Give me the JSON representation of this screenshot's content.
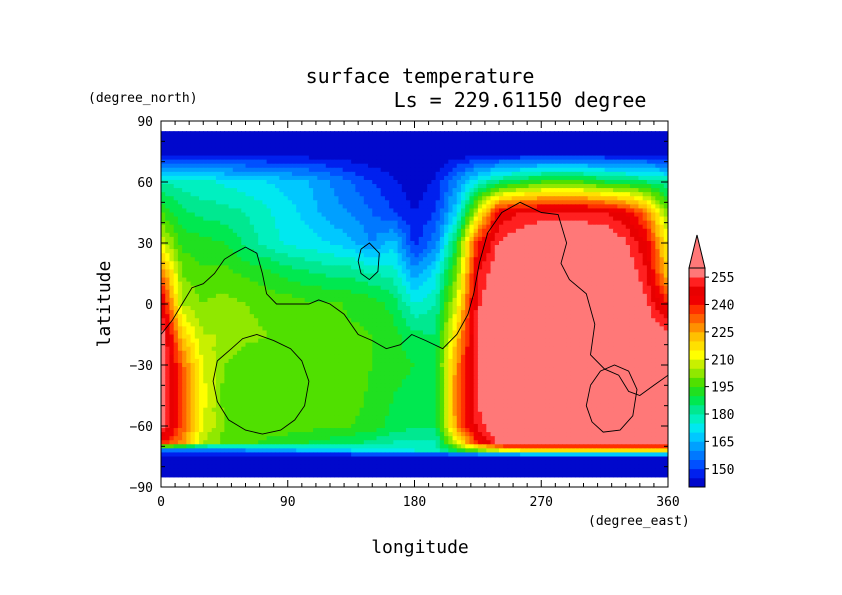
{
  "chart_data": {
    "type": "heatmap",
    "title": "surface temperature",
    "subtitle": "Ls = 229.61150 degree",
    "xlabel": "longitude",
    "ylabel": "latitude",
    "x_unit": "(degree_east)",
    "y_unit": "(degree_north)",
    "xlim": [
      0,
      360
    ],
    "ylim": [
      -90,
      90
    ],
    "x_ticks": [
      0,
      90,
      180,
      270,
      360
    ],
    "y_ticks": [
      90,
      60,
      30,
      0,
      -30,
      -60,
      -90
    ],
    "data_lat_range": [
      -85,
      85
    ],
    "colorbar": {
      "levels": [
        150,
        165,
        180,
        195,
        210,
        225,
        240,
        255
      ],
      "bands": [
        {
          "upper": 145,
          "color": "#0008cc"
        },
        {
          "upper": 150,
          "color": "#0020ee"
        },
        {
          "upper": 155,
          "color": "#0050ff"
        },
        {
          "upper": 160,
          "color": "#0078ff"
        },
        {
          "upper": 165,
          "color": "#00a0ff"
        },
        {
          "upper": 170,
          "color": "#00c8ff"
        },
        {
          "upper": 175,
          "color": "#00e8f0"
        },
        {
          "upper": 180,
          "color": "#00f0c0"
        },
        {
          "upper": 185,
          "color": "#00e890"
        },
        {
          "upper": 190,
          "color": "#00e850"
        },
        {
          "upper": 195,
          "color": "#20e020"
        },
        {
          "upper": 200,
          "color": "#50e000"
        },
        {
          "upper": 205,
          "color": "#90e800"
        },
        {
          "upper": 210,
          "color": "#c8f000"
        },
        {
          "upper": 215,
          "color": "#ffff00"
        },
        {
          "upper": 220,
          "color": "#ffe000"
        },
        {
          "upper": 225,
          "color": "#ffc000"
        },
        {
          "upper": 230,
          "color": "#ff9000"
        },
        {
          "upper": 235,
          "color": "#ff6000"
        },
        {
          "upper": 240,
          "color": "#ff3000"
        },
        {
          "upper": 245,
          "color": "#f00000"
        },
        {
          "upper": 250,
          "color": "#e80000"
        },
        {
          "upper": 255,
          "color": "#ff2020"
        },
        {
          "upper": 999,
          "color": "#ff7878"
        }
      ]
    },
    "field": {
      "lon": [
        0,
        15,
        30,
        45,
        60,
        75,
        90,
        105,
        120,
        135,
        150,
        165,
        180,
        195,
        210,
        225,
        240,
        255,
        270,
        285,
        300,
        315,
        330,
        345,
        360
      ],
      "lat": [
        85,
        75,
        60,
        45,
        30,
        15,
        0,
        -15,
        -30,
        -45,
        -60,
        -68,
        -72,
        -75,
        -85
      ],
      "values": [
        [
          140,
          140,
          140,
          140,
          140,
          140,
          140,
          140,
          140,
          140,
          140,
          140,
          140,
          140,
          140,
          140,
          140,
          140,
          140,
          140,
          140,
          140,
          140,
          140,
          140
        ],
        [
          140,
          140,
          140,
          140,
          140,
          140,
          140,
          140,
          140,
          140,
          140,
          140,
          140,
          140,
          140,
          140,
          140,
          140,
          140,
          140,
          140,
          140,
          140,
          140,
          140
        ],
        [
          180,
          178,
          176,
          174,
          172,
          170,
          168,
          165,
          160,
          155,
          150,
          146,
          142,
          146,
          160,
          175,
          185,
          190,
          195,
          195,
          195,
          190,
          188,
          185,
          180
        ],
        [
          195,
          186,
          183,
          182,
          180,
          176,
          172,
          168,
          162,
          160,
          155,
          150,
          145,
          150,
          170,
          210,
          245,
          250,
          252,
          252,
          252,
          250,
          245,
          230,
          200
        ],
        [
          210,
          193,
          192,
          190,
          184,
          178,
          174,
          172,
          170,
          166,
          160,
          168,
          148,
          158,
          190,
          240,
          256,
          260,
          262,
          262,
          262,
          262,
          256,
          245,
          212
        ],
        [
          232,
          200,
          196,
          197,
          194,
          192,
          188,
          186,
          184,
          184,
          180,
          178,
          162,
          172,
          200,
          250,
          260,
          262,
          262,
          262,
          262,
          262,
          262,
          250,
          220
        ],
        [
          250,
          205,
          200,
          202,
          200,
          198,
          198,
          196,
          196,
          194,
          193,
          188,
          175,
          180,
          210,
          254,
          262,
          262,
          262,
          262,
          262,
          262,
          262,
          256,
          240
        ],
        [
          260,
          220,
          205,
          205,
          202,
          200,
          198,
          198,
          197,
          196,
          195,
          192,
          186,
          185,
          220,
          256,
          262,
          262,
          262,
          262,
          262,
          262,
          262,
          260,
          258
        ],
        [
          262,
          232,
          210,
          200,
          196,
          198,
          198,
          198,
          197,
          197,
          195,
          192,
          190,
          188,
          228,
          257,
          262,
          262,
          262,
          262,
          262,
          262,
          262,
          262,
          262
        ],
        [
          262,
          236,
          212,
          198,
          195,
          197,
          198,
          198,
          197,
          197,
          194,
          190,
          188,
          186,
          232,
          257,
          262,
          262,
          262,
          262,
          262,
          262,
          262,
          262,
          262
        ],
        [
          260,
          234,
          210,
          200,
          198,
          198,
          198,
          197,
          196,
          195,
          193,
          188,
          186,
          186,
          228,
          252,
          262,
          262,
          262,
          262,
          262,
          262,
          262,
          262,
          262
        ],
        [
          240,
          228,
          205,
          198,
          196,
          194,
          192,
          190,
          188,
          186,
          184,
          180,
          178,
          180,
          210,
          240,
          258,
          262,
          262,
          262,
          262,
          262,
          262,
          262,
          262
        ],
        [
          158,
          156,
          156,
          158,
          160,
          162,
          164,
          166,
          168,
          170,
          172,
          174,
          175,
          178,
          190,
          200,
          210,
          215,
          215,
          215,
          215,
          215,
          215,
          215,
          215
        ],
        [
          140,
          140,
          140,
          140,
          140,
          140,
          140,
          140,
          140,
          140,
          140,
          140,
          140,
          140,
          140,
          140,
          140,
          140,
          140,
          140,
          140,
          140,
          140,
          140,
          140
        ],
        [
          140,
          140,
          140,
          140,
          140,
          140,
          140,
          140,
          140,
          140,
          140,
          140,
          140,
          140,
          140,
          140,
          140,
          140,
          140,
          140,
          140,
          140,
          140,
          140,
          140
        ]
      ]
    },
    "contours": [
      [
        [
          0,
          -15
        ],
        [
          8,
          -8
        ],
        [
          15,
          0
        ],
        [
          22,
          8
        ],
        [
          30,
          10
        ],
        [
          38,
          15
        ],
        [
          45,
          22
        ],
        [
          52,
          25
        ],
        [
          60,
          28
        ],
        [
          68,
          25
        ],
        [
          72,
          15
        ],
        [
          75,
          5
        ],
        [
          82,
          0
        ],
        [
          95,
          0
        ],
        [
          105,
          0
        ],
        [
          112,
          2
        ],
        [
          120,
          0
        ],
        [
          130,
          -5
        ],
        [
          140,
          -15
        ],
        [
          150,
          -18
        ],
        [
          160,
          -22
        ],
        [
          170,
          -20
        ],
        [
          178,
          -15
        ],
        [
          188,
          -18
        ],
        [
          200,
          -22
        ],
        [
          210,
          -15
        ],
        [
          218,
          -5
        ],
        [
          222,
          5
        ],
        [
          226,
          20
        ],
        [
          232,
          35
        ],
        [
          242,
          45
        ],
        [
          255,
          50
        ],
        [
          270,
          45
        ],
        [
          282,
          44
        ],
        [
          288,
          30
        ],
        [
          284,
          20
        ],
        [
          290,
          12
        ],
        [
          302,
          5
        ],
        [
          308,
          -10
        ],
        [
          305,
          -25
        ],
        [
          315,
          -32
        ],
        [
          325,
          -35
        ],
        [
          332,
          -43
        ],
        [
          340,
          -45
        ],
        [
          350,
          -40
        ],
        [
          360,
          -35
        ]
      ],
      [
        [
          40,
          -28
        ],
        [
          50,
          -22
        ],
        [
          58,
          -17
        ],
        [
          68,
          -15
        ],
        [
          80,
          -18
        ],
        [
          92,
          -22
        ],
        [
          100,
          -28
        ],
        [
          105,
          -38
        ],
        [
          102,
          -50
        ],
        [
          95,
          -57
        ],
        [
          85,
          -62
        ],
        [
          72,
          -64
        ],
        [
          60,
          -62
        ],
        [
          48,
          -57
        ],
        [
          40,
          -48
        ],
        [
          37,
          -38
        ],
        [
          40,
          -28
        ]
      ],
      [
        [
          142,
          27
        ],
        [
          148,
          30
        ],
        [
          155,
          25
        ],
        [
          154,
          16
        ],
        [
          148,
          12
        ],
        [
          142,
          15
        ],
        [
          140,
          21
        ],
        [
          142,
          27
        ]
      ],
      [
        [
          305,
          -40
        ],
        [
          312,
          -33
        ],
        [
          322,
          -30
        ],
        [
          332,
          -33
        ],
        [
          338,
          -42
        ],
        [
          335,
          -55
        ],
        [
          326,
          -62
        ],
        [
          314,
          -63
        ],
        [
          306,
          -58
        ],
        [
          302,
          -50
        ],
        [
          305,
          -40
        ]
      ]
    ]
  }
}
